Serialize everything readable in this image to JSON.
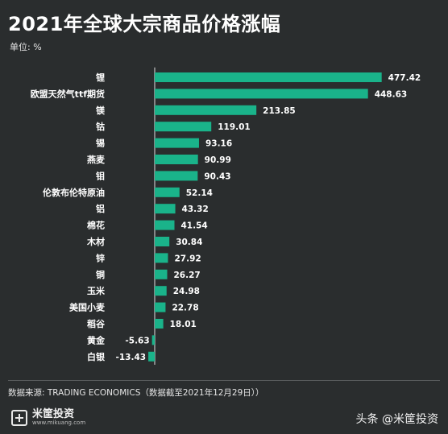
{
  "header": {
    "title": "2021年全球大宗商品价格涨幅",
    "unit": "单位: %"
  },
  "footer": {
    "source": "数据来源:  TRADING ECONOMICS（数据截至2021年12月29日））",
    "logo_name": "米筐投资",
    "logo_url": "www.mikuang.com",
    "watermark": "头条 @米筐投资"
  },
  "colors": {
    "background": "#2a2d2e",
    "bar": "#1ab38a",
    "axis": "#e0e0e0"
  },
  "chart_data": {
    "type": "bar",
    "orientation": "horizontal",
    "title": "2021年全球大宗商品价格涨幅",
    "ylabel": "",
    "xlabel": "",
    "unit": "%",
    "grid": false,
    "xlim": [
      -20,
      500
    ],
    "categories": [
      "锂",
      "欧盟天然气ttf期货",
      "镁",
      "钴",
      "锡",
      "燕麦",
      "钼",
      "伦敦布伦特原油",
      "铝",
      "棉花",
      "木材",
      "锌",
      "铜",
      "玉米",
      "美国小麦",
      "稻谷",
      "黄金",
      "白银"
    ],
    "values": [
      477.42,
      448.63,
      213.85,
      119.01,
      93.16,
      90.99,
      90.43,
      52.14,
      43.32,
      41.54,
      30.84,
      27.92,
      26.27,
      24.98,
      22.78,
      18.01,
      -5.63,
      -13.43
    ],
    "value_labels": [
      "477.42",
      "448.63",
      "213.85",
      "119.01",
      "93.16",
      "90.99",
      "90.43",
      "52.14",
      "43.32",
      "41.54",
      "30.84",
      "27.92",
      "26.27",
      "24.98",
      "22.78",
      "18.01",
      "-5.63",
      "-13.43"
    ]
  }
}
